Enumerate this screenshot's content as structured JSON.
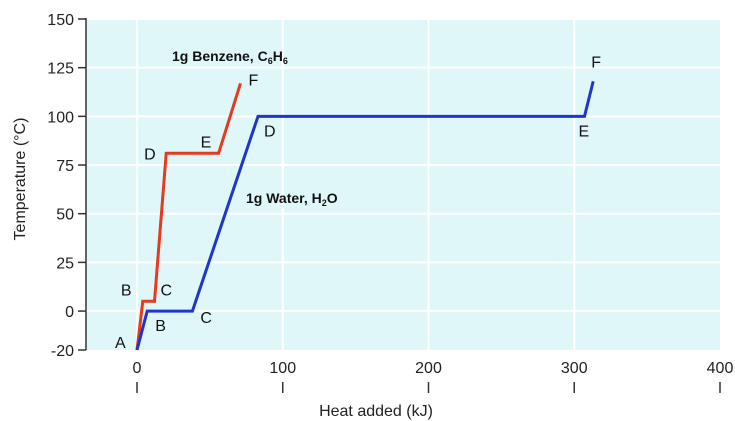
{
  "chart_data": {
    "type": "line",
    "xlabel": "Heat added (kJ)",
    "ylabel": "Temperature (°C)",
    "xlim": [
      -35,
      400
    ],
    "ylim": [
      -20,
      150
    ],
    "xticks": [
      0,
      100,
      200,
      300,
      400
    ],
    "yticks": [
      -20,
      0,
      25,
      50,
      75,
      100,
      125,
      150
    ],
    "grid": true,
    "background": "#e0f7fa",
    "series": [
      {
        "name": "1g Benzene, C6H6",
        "label_parts": [
          "1g Benzene, C",
          "6",
          "H",
          "6"
        ],
        "color": "#e53a1e",
        "points": [
          {
            "label": "",
            "x": 0,
            "y": -20
          },
          {
            "label": "B",
            "x": 4,
            "y": 5
          },
          {
            "label": "C",
            "x": 12,
            "y": 5
          },
          {
            "label": "D",
            "x": 20,
            "y": 81
          },
          {
            "label": "E",
            "x": 56,
            "y": 81
          },
          {
            "label": "F",
            "x": 71,
            "y": 117
          }
        ]
      },
      {
        "name": "1g Water, H2O",
        "label_parts": [
          "1g Water, H",
          "2",
          "O"
        ],
        "color": "#1f36c9",
        "points": [
          {
            "label": "A",
            "x": 0,
            "y": -20
          },
          {
            "label": "B",
            "x": 7,
            "y": 0
          },
          {
            "label": "C",
            "x": 38,
            "y": 0
          },
          {
            "label": "D",
            "x": 83,
            "y": 100
          },
          {
            "label": "E",
            "x": 307,
            "y": 100
          },
          {
            "label": "F",
            "x": 313,
            "y": 118
          }
        ]
      }
    ]
  }
}
